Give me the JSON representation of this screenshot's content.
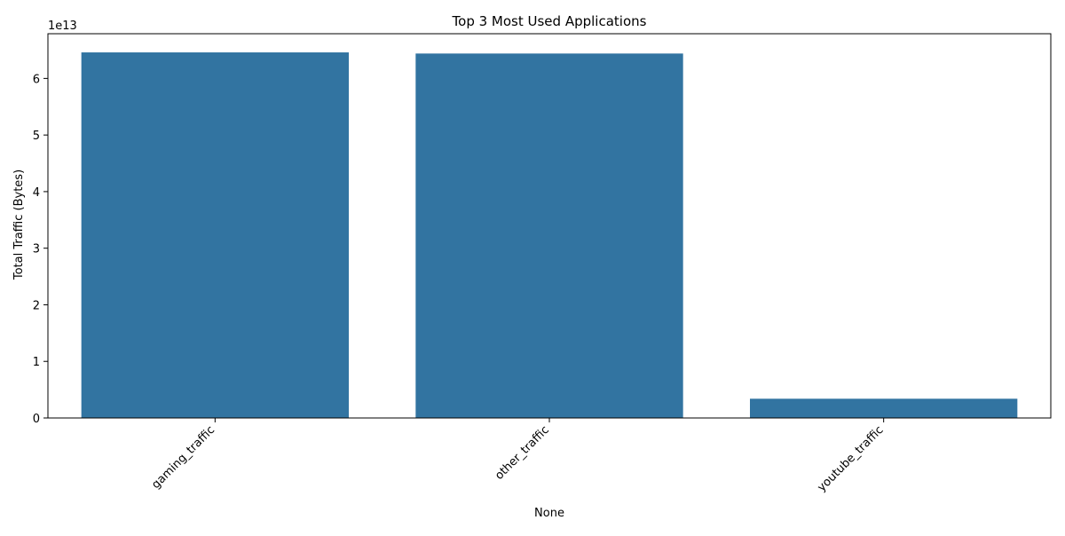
{
  "chart_data": {
    "type": "bar",
    "title": "Top 3 Most Used Applications",
    "xlabel": "None",
    "ylabel": "Total Traffic (Bytes)",
    "y_offset_label": "1e13",
    "y_scale": 10000000000000.0,
    "categories": [
      "gaming_traffic",
      "other_traffic",
      "youtube_traffic"
    ],
    "values": [
      64600000000000,
      64400000000000,
      3400000000000
    ],
    "ylim": [
      0,
      67900000000000
    ],
    "y_ticks": [
      0,
      1,
      2,
      3,
      4,
      5,
      6
    ],
    "x_tick_rotation_deg": 45,
    "grid": false,
    "legend": "none",
    "bar_color": "#3274a1"
  }
}
